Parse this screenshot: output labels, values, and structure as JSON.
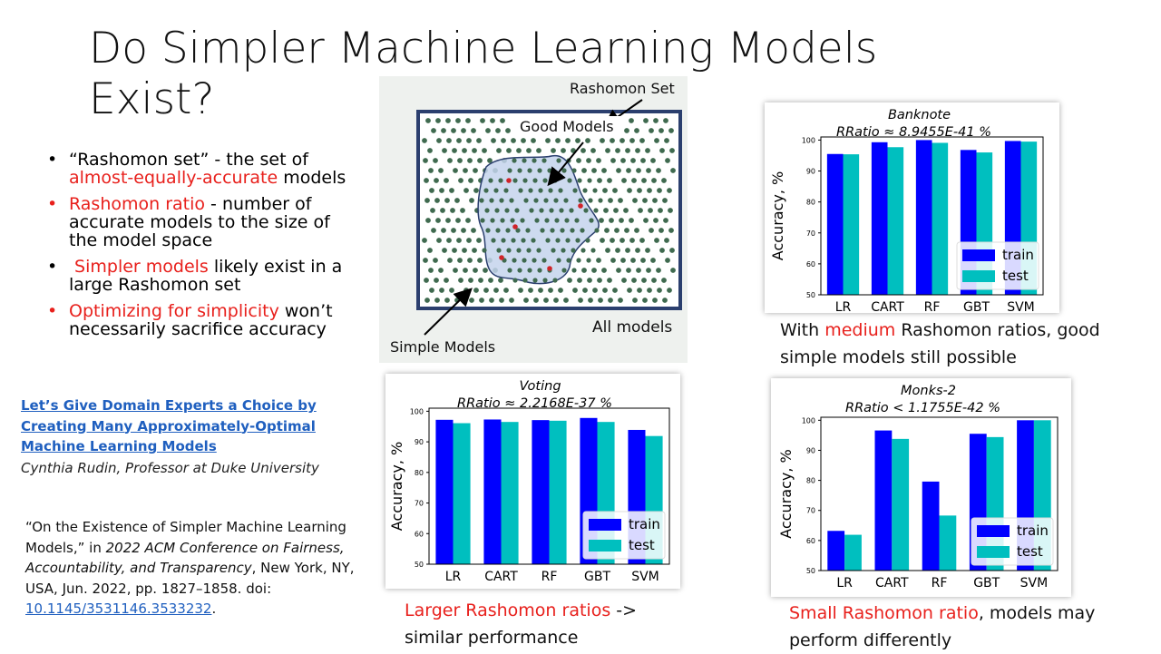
{
  "slide": {
    "title_line1": "Do Simpler Machine Learning Models",
    "title_line2": "Exist?"
  },
  "bullets": [
    {
      "pre": "“Rashomon set” - the set of ",
      "highlight": "almost-equally-accurate",
      "post": " models",
      "dot_color": "#000000"
    },
    {
      "pre": "",
      "highlight": "Rashomon ratio",
      "post": " - number of accurate models to the size of the model space",
      "dot_color": "#e8201c"
    },
    {
      "pre": " ",
      "highlight": "Simpler models",
      "post": " likely exist in a large Rashomon set",
      "dot_color": "#000000"
    },
    {
      "pre": "",
      "highlight": "Optimizing for simplicity",
      "post": " won’t necessarily sacrifice accuracy",
      "dot_color": "#e8201c"
    }
  ],
  "reference": {
    "link_text": "Let’s Give Domain Experts a Choice by Creating Many Approximately-Optimal Machine Learning Models",
    "author": "Cynthia Rudin, Professor at Duke University"
  },
  "citation": {
    "part1": "“On the Existence of Simpler Machine Learning Models,” in ",
    "venue": "2022 ACM Conference on Fairness, Accountability, and Transparency",
    "part2": ", New York, NY, USA, Jun. 2022, pp. 1827–1858. doi: ",
    "doi": "10.1145/3531146.3533232",
    "end": "."
  },
  "diagram": {
    "rashomon_set": "Rashomon Set",
    "good_models": "Good Models",
    "all_models": "All models",
    "simple_models": "Simple Models"
  },
  "captions": {
    "banknote": {
      "pre": "With ",
      "highlight": "medium",
      "post": " Rashomon ratios, good simple models still possible"
    },
    "voting": {
      "highlight": "Larger Rashomon ratios",
      "post": " -> similar performance"
    },
    "monks": {
      "highlight": "Small Rashomon ratio",
      "post": ", models may perform differently"
    }
  },
  "colors": {
    "train": "#0000ff",
    "test": "#00bfbf",
    "accent": "#e8201c",
    "link": "#1f5fbf"
  },
  "chart_data": [
    {
      "type": "bar",
      "title": "Banknote",
      "subtitle": "RRatio ≈  8.9455E-41 %",
      "categories": [
        "LR",
        "CART",
        "RF",
        "GBT",
        "SVM"
      ],
      "series": [
        {
          "name": "train",
          "values": [
            95.5,
            99.3,
            100.0,
            96.8,
            99.7
          ]
        },
        {
          "name": "test",
          "values": [
            95.4,
            97.7,
            99.1,
            96.0,
            99.5
          ]
        }
      ],
      "ylabel": "Accuracy, %",
      "ylim": [
        50,
        101
      ],
      "yticks": [
        50,
        60,
        70,
        80,
        90,
        100
      ],
      "legend": "bottom-right"
    },
    {
      "type": "bar",
      "title": "Voting",
      "subtitle": "RRatio ≈  2.2168E-37 %",
      "categories": [
        "LR",
        "CART",
        "RF",
        "GBT",
        "SVM"
      ],
      "series": [
        {
          "name": "train",
          "values": [
            97.2,
            97.3,
            97.1,
            97.8,
            93.9
          ]
        },
        {
          "name": "test",
          "values": [
            96.1,
            96.5,
            96.9,
            96.5,
            91.9
          ]
        }
      ],
      "ylabel": "Accuracy, %",
      "ylim": [
        50,
        101
      ],
      "yticks": [
        50,
        60,
        70,
        80,
        90,
        100
      ],
      "legend": "bottom-right"
    },
    {
      "type": "bar",
      "title": "Monks-2",
      "subtitle": "RRatio < 1.1755E-42 %",
      "categories": [
        "LR",
        "CART",
        "RF",
        "GBT",
        "SVM"
      ],
      "series": [
        {
          "name": "train",
          "values": [
            63.2,
            96.6,
            79.6,
            95.5,
            100.0
          ]
        },
        {
          "name": "test",
          "values": [
            61.9,
            93.8,
            68.3,
            94.4,
            100.0
          ]
        }
      ],
      "ylabel": "Accuracy, %",
      "ylim": [
        50,
        101
      ],
      "yticks": [
        50,
        60,
        70,
        80,
        90,
        100
      ],
      "legend": "bottom-right"
    }
  ]
}
